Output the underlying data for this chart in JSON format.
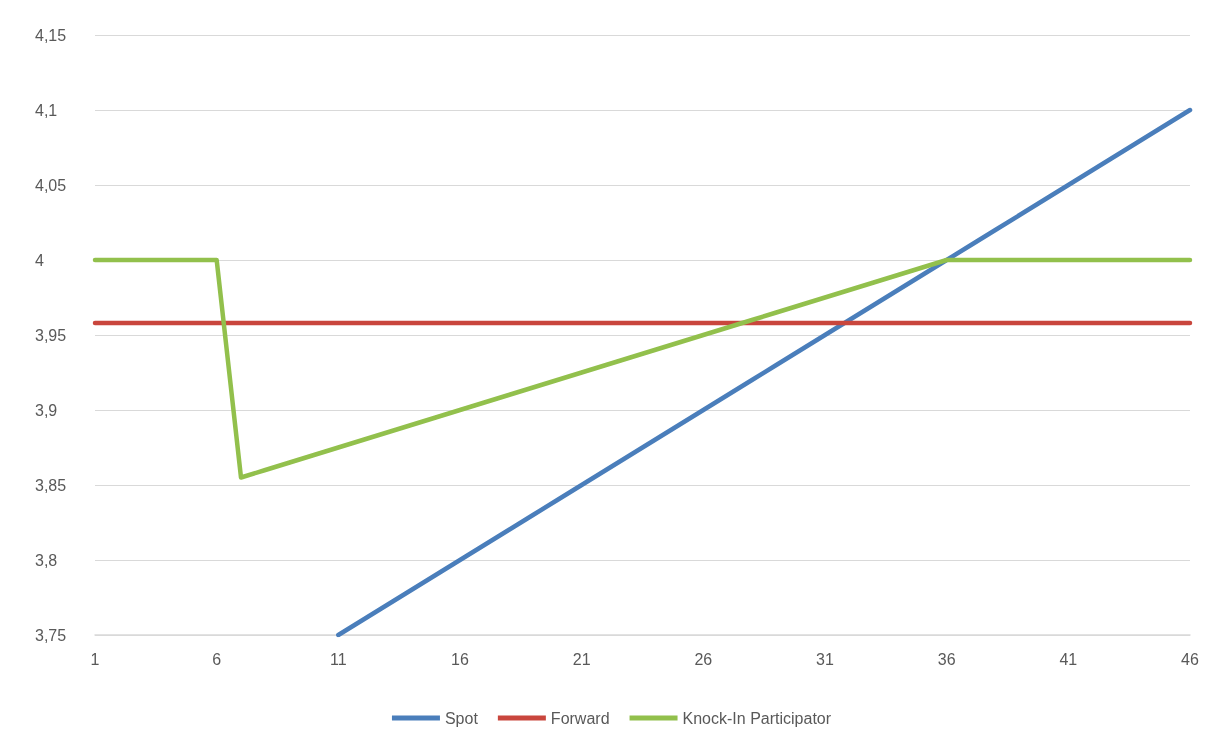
{
  "chart_data": {
    "type": "line",
    "categories": [
      "1",
      null,
      null,
      null,
      null,
      "6",
      null,
      null,
      null,
      null,
      "11",
      null,
      null,
      null,
      null,
      "16",
      null,
      null,
      null,
      null,
      "21",
      null,
      null,
      null,
      null,
      "26",
      null,
      null,
      null,
      null,
      "31",
      null,
      null,
      null,
      null,
      "36",
      null,
      null,
      null,
      null,
      "41",
      null,
      null,
      null,
      null,
      "46"
    ],
    "series": [
      {
        "name": "Spot",
        "color": "#4a7ebb",
        "values": [
          null,
          null,
          null,
          null,
          null,
          null,
          null,
          null,
          null,
          null,
          3.75,
          3.76,
          3.77,
          3.78,
          3.79,
          3.8,
          3.81,
          3.82,
          3.83,
          3.84,
          3.85,
          3.86,
          3.87,
          3.88,
          3.89,
          3.9,
          3.91,
          3.92,
          3.93,
          3.94,
          3.95,
          3.96,
          3.97,
          3.98,
          3.99,
          4,
          4.01,
          4.02,
          4.03,
          4.04,
          4.05,
          4.06,
          4.07,
          4.08,
          4.09,
          4.1
        ]
      },
      {
        "name": "Forward",
        "color": "#c9463d",
        "values": [
          3.958,
          3.958,
          3.958,
          3.958,
          3.958,
          3.958,
          3.958,
          3.958,
          3.958,
          3.958,
          3.958,
          3.958,
          3.958,
          3.958,
          3.958,
          3.958,
          3.958,
          3.958,
          3.958,
          3.958,
          3.958,
          3.958,
          3.958,
          3.958,
          3.958,
          3.958,
          3.958,
          3.958,
          3.958,
          3.958,
          3.958,
          3.958,
          3.958,
          3.958,
          3.958,
          3.958,
          3.958,
          3.958,
          3.958,
          3.958,
          3.958,
          3.958,
          3.958,
          3.958,
          3.958,
          3.958
        ]
      },
      {
        "name": "Knock-In Participator",
        "color": "#92c04c",
        "values": [
          4,
          4,
          4,
          4,
          4,
          4,
          3.855,
          3.86,
          3.865,
          3.87,
          3.875,
          3.88,
          3.885,
          3.89,
          3.895,
          3.9,
          3.905,
          3.91,
          3.915,
          3.92,
          3.925,
          3.93,
          3.935,
          3.94,
          3.945,
          3.95,
          3.955,
          3.96,
          3.965,
          3.97,
          3.975,
          3.98,
          3.985,
          3.99,
          3.995,
          4,
          4,
          4,
          4,
          4,
          4,
          4,
          4,
          4,
          4,
          4
        ]
      }
    ],
    "ylim": [
      3.75,
      4.15
    ],
    "yticks": [
      {
        "value": 3.75,
        "label": "3,75"
      },
      {
        "value": 3.8,
        "label": "3,8"
      },
      {
        "value": 3.85,
        "label": "3,85"
      },
      {
        "value": 3.9,
        "label": "3,9"
      },
      {
        "value": 3.95,
        "label": "3,95"
      },
      {
        "value": 4,
        "label": "4"
      },
      {
        "value": 4.05,
        "label": "4,05"
      },
      {
        "value": 4.1,
        "label": "4,1"
      },
      {
        "value": 4.15,
        "label": "4,15"
      }
    ],
    "grid": "y",
    "legend": "bottom",
    "marker": "none",
    "line_style": "solid"
  }
}
